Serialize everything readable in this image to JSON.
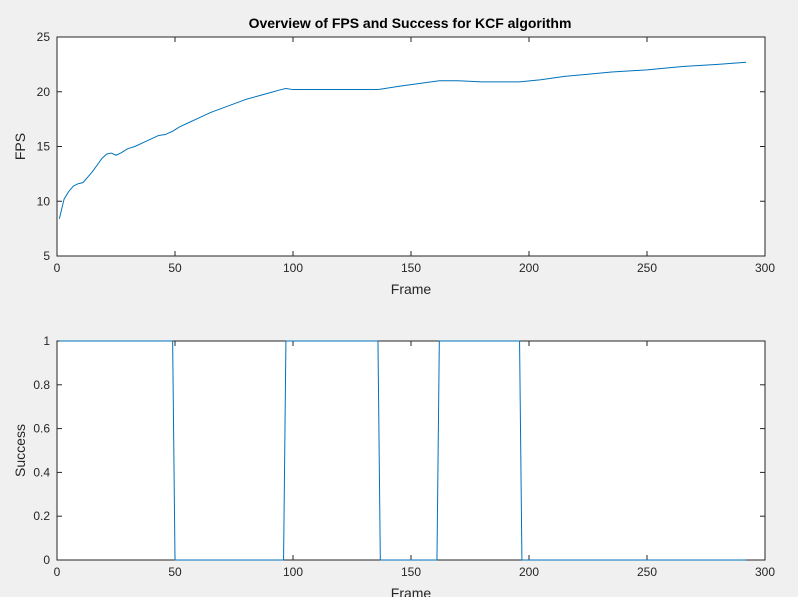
{
  "figure": {
    "title": "Overview of FPS and Success for KCF algorithm",
    "background": "#f0f0f0",
    "axes_background": "#ffffff",
    "axes_edge_color": "#262626",
    "line_color": "#0072bd"
  },
  "chart_data": [
    {
      "type": "line",
      "title": "Overview of FPS and Success for KCF algorithm",
      "xlabel": "Frame",
      "ylabel": "FPS",
      "xlim": [
        0,
        300
      ],
      "ylim": [
        5,
        25
      ],
      "xticks": [
        0,
        50,
        100,
        150,
        200,
        250,
        300
      ],
      "yticks": [
        5,
        10,
        15,
        20,
        25
      ],
      "xtick_labels": [
        "0",
        "50",
        "100",
        "150",
        "200",
        "250",
        "300"
      ],
      "ytick_labels": [
        "5",
        "10",
        "15",
        "20",
        "25"
      ],
      "grid": false,
      "series": [
        {
          "x": [
            1,
            3,
            5,
            7,
            9,
            11,
            13,
            15,
            17,
            19,
            21,
            23,
            25,
            27,
            30,
            33,
            36,
            40,
            43,
            46,
            49,
            52,
            55,
            60,
            65,
            70,
            75,
            80,
            85,
            90,
            95,
            97,
            100,
            110,
            120,
            130,
            136,
            145,
            155,
            162,
            170,
            180,
            190,
            196,
            205,
            215,
            225,
            235,
            250,
            265,
            280,
            292
          ],
          "y": [
            8.4,
            10.2,
            10.9,
            11.4,
            11.6,
            11.7,
            12.2,
            12.7,
            13.3,
            13.9,
            14.3,
            14.4,
            14.2,
            14.4,
            14.8,
            15.0,
            15.3,
            15.7,
            16.0,
            16.1,
            16.4,
            16.8,
            17.1,
            17.6,
            18.1,
            18.5,
            18.9,
            19.3,
            19.6,
            19.9,
            20.2,
            20.3,
            20.2,
            20.2,
            20.2,
            20.2,
            20.2,
            20.5,
            20.8,
            21.0,
            21.0,
            20.9,
            20.9,
            20.9,
            21.1,
            21.4,
            21.6,
            21.8,
            22.0,
            22.3,
            22.5,
            22.7
          ]
        }
      ]
    },
    {
      "type": "line",
      "title": "",
      "xlabel": "Frame",
      "ylabel": "Success",
      "xlim": [
        0,
        300
      ],
      "ylim": [
        0,
        1
      ],
      "xticks": [
        0,
        50,
        100,
        150,
        200,
        250,
        300
      ],
      "yticks": [
        0,
        0.2,
        0.4,
        0.6,
        0.8,
        1
      ],
      "xtick_labels": [
        "0",
        "50",
        "100",
        "150",
        "200",
        "250",
        "300"
      ],
      "ytick_labels": [
        "0",
        "0.2",
        "0.4",
        "0.6",
        "0.8",
        "1"
      ],
      "grid": false,
      "series": [
        {
          "x": [
            1,
            49,
            50,
            96,
            97,
            136,
            137,
            161,
            162,
            196,
            197,
            292
          ],
          "y": [
            1,
            1,
            0,
            0,
            1,
            1,
            0,
            0,
            1,
            1,
            0,
            0
          ]
        }
      ]
    }
  ]
}
